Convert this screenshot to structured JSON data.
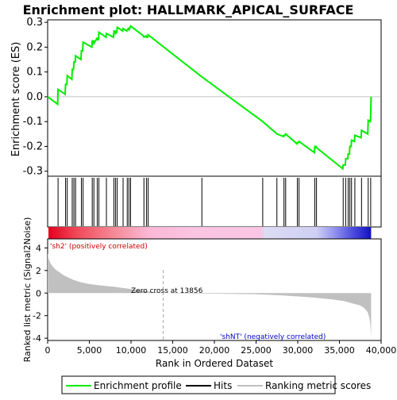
{
  "chart_data": {
    "type": "line",
    "title": "Enrichment plot: HALLMARK_APICAL_SURFACE",
    "es_panel": {
      "ylabel": "Enrichment score (ES)",
      "ylim": [
        -0.32,
        0.31
      ],
      "yticks": [
        -0.3,
        -0.2,
        -0.1,
        0.0,
        0.1,
        0.2,
        0.3
      ],
      "ytick_labels": [
        "-0.3",
        "-0.2",
        "-0.1",
        "0.0",
        "0.1",
        "0.2",
        "0.3"
      ],
      "series": [
        {
          "name": "Enrichment profile",
          "color": "#00ee00",
          "x": [
            0,
            1200,
            1250,
            2100,
            2150,
            2300,
            2350,
            2900,
            2950,
            3100,
            3150,
            3300,
            3350,
            4000,
            4050,
            4200,
            4250,
            5300,
            5350,
            5500,
            5550,
            5900,
            5950,
            6100,
            6150,
            7000,
            7050,
            7900,
            7950,
            8100,
            8150,
            8300,
            8350,
            9000,
            9050,
            9500,
            9550,
            9700,
            9750,
            9900,
            9950,
            11500,
            11550,
            11800,
            11850,
            12000,
            12050,
            18500,
            25800,
            27500,
            28300,
            28350,
            28500,
            28550,
            29900,
            29950,
            30100,
            30150,
            32000,
            32050,
            32200,
            32250,
            35400,
            35450,
            35700,
            35750,
            36000,
            36050,
            36200,
            36250,
            36400,
            36450,
            36800,
            36850,
            37600,
            37650,
            38400,
            38450,
            38700,
            38750,
            38800
          ],
          "y": [
            0.0,
            -0.03,
            0.03,
            0.01,
            0.05,
            0.05,
            0.085,
            0.07,
            0.11,
            0.11,
            0.14,
            0.14,
            0.165,
            0.15,
            0.185,
            0.185,
            0.22,
            0.2,
            0.225,
            0.225,
            0.215,
            0.235,
            0.23,
            0.23,
            0.26,
            0.24,
            0.255,
            0.24,
            0.265,
            0.265,
            0.255,
            0.26,
            0.28,
            0.265,
            0.275,
            0.265,
            0.27,
            0.275,
            0.27,
            0.28,
            0.285,
            0.245,
            0.24,
            0.245,
            0.24,
            0.24,
            0.25,
            0.08,
            -0.1,
            -0.15,
            -0.16,
            -0.155,
            -0.155,
            -0.15,
            -0.19,
            -0.185,
            -0.185,
            -0.18,
            -0.225,
            -0.2,
            -0.2,
            -0.205,
            -0.29,
            -0.275,
            -0.275,
            -0.25,
            -0.25,
            -0.23,
            -0.23,
            -0.2,
            -0.2,
            -0.175,
            -0.18,
            -0.155,
            -0.165,
            -0.135,
            -0.15,
            -0.095,
            -0.1,
            -0.07,
            0.0
          ]
        }
      ]
    },
    "hits_panel": {
      "series_name": "Hits",
      "color": "#000000",
      "x": [
        1250,
        2150,
        2350,
        2950,
        3150,
        3350,
        4050,
        4250,
        5350,
        5550,
        5950,
        6150,
        7050,
        7950,
        8150,
        8350,
        9050,
        9550,
        9750,
        9950,
        11550,
        11850,
        12050,
        18500,
        25800,
        27500,
        28350,
        28550,
        29950,
        30150,
        32050,
        32250,
        35450,
        35750,
        36050,
        36250,
        36450,
        36850,
        37650,
        38450,
        38750
      ]
    },
    "ranked_metric_panel": {
      "series_name": "Ranking metric scores",
      "ylabel": "Ranked list metric (Signal2Noise)",
      "ylim": [
        -4.2,
        4.8
      ],
      "yticks": [
        -4,
        -2,
        0,
        2,
        4
      ],
      "ytick_labels": [
        "-4",
        "-2",
        "0",
        "2",
        "4"
      ],
      "fill_color": "#c0c0c0",
      "x": [
        0,
        100,
        300,
        600,
        1000,
        1500,
        2000,
        3000,
        4000,
        5000,
        6000,
        8000,
        10000,
        12000,
        13856,
        15000,
        20000,
        25000,
        28000,
        30000,
        32000,
        34000,
        35500,
        36500,
        37500,
        38000,
        38400,
        38600,
        38700,
        38800
      ],
      "y": [
        3.6,
        3.1,
        2.7,
        2.35,
        2.05,
        1.8,
        1.55,
        1.2,
        0.95,
        0.8,
        0.7,
        0.55,
        0.35,
        0.15,
        0.0,
        -0.02,
        -0.05,
        -0.1,
        -0.2,
        -0.3,
        -0.4,
        -0.55,
        -0.7,
        -0.9,
        -1.1,
        -1.35,
        -1.7,
        -2.2,
        -2.8,
        -3.9
      ],
      "zero_cross_x": 13856,
      "zero_cross_label": "Zero cross at 13856",
      "pos_label": "'sh2' (positively correlated)",
      "neg_label": "'shNT' (negatively correlated)"
    },
    "x_axis": {
      "xlabel": "Rank in Ordered Dataset",
      "xlim": [
        0,
        40000
      ],
      "xticks": [
        0,
        5000,
        10000,
        15000,
        20000,
        25000,
        30000,
        35000,
        40000
      ],
      "xtick_labels": [
        "0",
        "5,000",
        "10,000",
        "15,000",
        "20,000",
        "25,000",
        "30,000",
        "35,000",
        "40,000"
      ],
      "n_genes": 38800
    },
    "legend": {
      "placement": "bottom",
      "entries": [
        {
          "label": "Enrichment profile",
          "color": "#00ee00"
        },
        {
          "label": "Hits",
          "color": "#000000"
        },
        {
          "label": "Ranking metric scores",
          "color": "#c0c0c0"
        }
      ]
    }
  }
}
